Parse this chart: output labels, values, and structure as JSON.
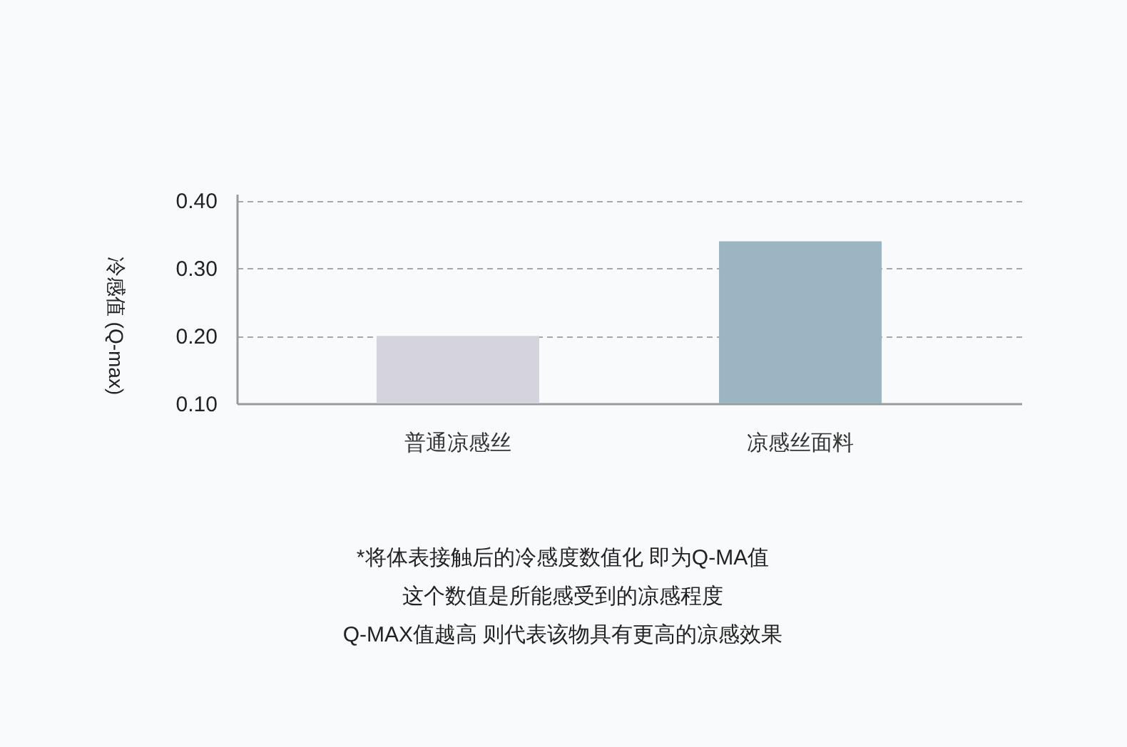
{
  "chart_data": {
    "type": "bar",
    "ylabel": "冷感值 (Q-max)",
    "categories": [
      "普通凉感丝",
      "凉感丝面料"
    ],
    "values": [
      0.2,
      0.34
    ],
    "colors": [
      "#d5d4dd",
      "#9bb5c3"
    ],
    "ylim": [
      0.1,
      0.41
    ],
    "yticks": [
      {
        "value": 0.1,
        "label": "0.10"
      },
      {
        "value": 0.2,
        "label": "0.20"
      },
      {
        "value": 0.3,
        "label": "0.30"
      },
      {
        "value": 0.4,
        "label": "0.40"
      }
    ],
    "grid": "y",
    "annotations": [
      "*将体表接触后的冷感度数值化 即为Q-MA值",
      "这个数值是所能感受到的凉感程度",
      "Q-MAX值越高 则代表该物具有更高的凉感效果"
    ]
  }
}
